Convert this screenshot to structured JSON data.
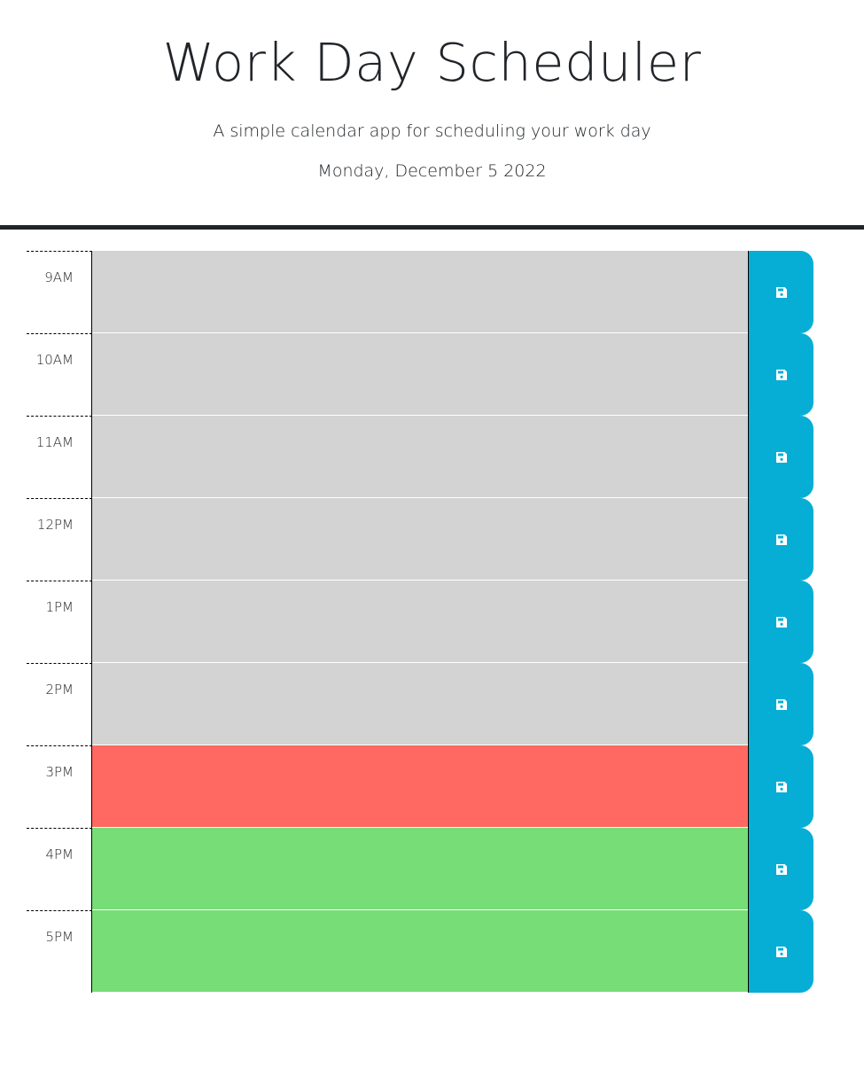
{
  "header": {
    "title": "Work Day Scheduler",
    "subtitle": "A simple calendar app for scheduling your work day",
    "current_day": "Monday, December 5 2022"
  },
  "colors": {
    "past": "#d3d3d3",
    "present": "#ff6961",
    "future": "#77dd77",
    "save_button": "#06aed5"
  },
  "time_blocks": [
    {
      "hour": "9AM",
      "status": "past",
      "text": "",
      "save_icon": "save-icon"
    },
    {
      "hour": "10AM",
      "status": "past",
      "text": "",
      "save_icon": "save-icon"
    },
    {
      "hour": "11AM",
      "status": "past",
      "text": "",
      "save_icon": "save-icon"
    },
    {
      "hour": "12PM",
      "status": "past",
      "text": "",
      "save_icon": "save-icon"
    },
    {
      "hour": "1PM",
      "status": "past",
      "text": "",
      "save_icon": "save-icon"
    },
    {
      "hour": "2PM",
      "status": "past",
      "text": "",
      "save_icon": "save-icon"
    },
    {
      "hour": "3PM",
      "status": "present",
      "text": "",
      "save_icon": "save-icon"
    },
    {
      "hour": "4PM",
      "status": "future",
      "text": "",
      "save_icon": "save-icon"
    },
    {
      "hour": "5PM",
      "status": "future",
      "text": "",
      "save_icon": "save-icon"
    }
  ]
}
